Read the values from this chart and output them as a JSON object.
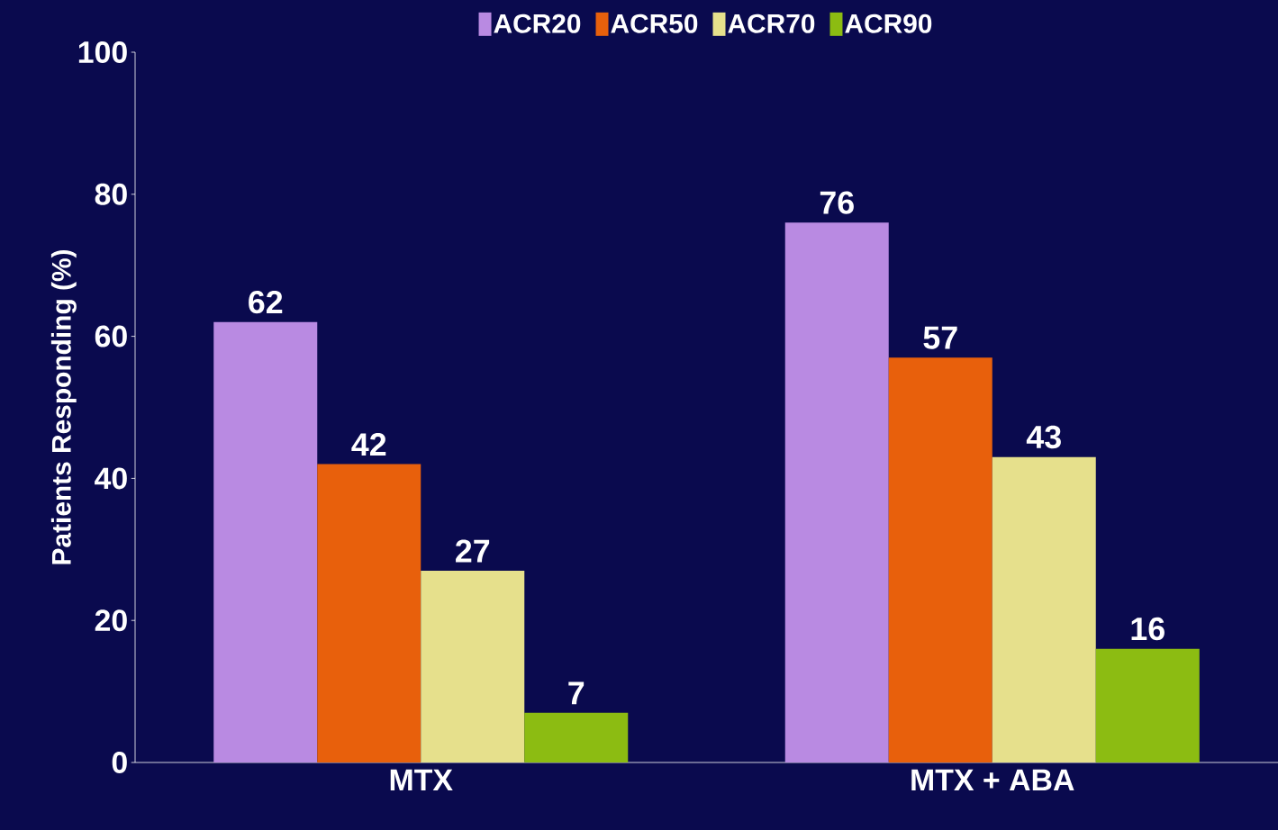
{
  "chart_data": {
    "type": "bar",
    "ylabel": "Patients Responding (%)",
    "categories": [
      "MTX",
      "MTX + ABA"
    ],
    "series": [
      {
        "name": "ACR20",
        "color": "#b98ae2",
        "values": [
          62,
          76
        ]
      },
      {
        "name": "ACR50",
        "color": "#e8600c",
        "values": [
          42,
          57
        ]
      },
      {
        "name": "ACR70",
        "color": "#e6e08c",
        "values": [
          27,
          43
        ]
      },
      {
        "name": "ACR90",
        "color": "#8cbc12",
        "values": [
          7,
          16
        ]
      }
    ],
    "ylim": [
      0,
      100
    ],
    "yticks": [
      0,
      20,
      40,
      60,
      80,
      100
    ],
    "data_labels": true,
    "legend": "top",
    "grid": false
  }
}
